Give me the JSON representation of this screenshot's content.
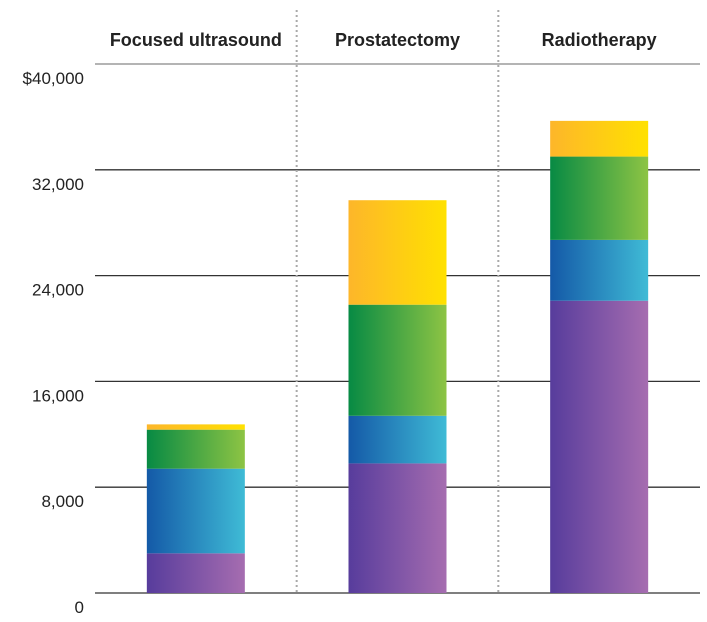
{
  "chart_data": {
    "type": "stacked-bar",
    "categories": [
      "Focused ultrasound",
      "Prostatectomy",
      "Radiotherapy"
    ],
    "series": [
      {
        "colors": [
          "#573c9c",
          "#a66db0"
        ],
        "values": [
          3000,
          9800,
          22100
        ]
      },
      {
        "colors": [
          "#1459a7",
          "#3fbbd6"
        ],
        "values": [
          6400,
          3600,
          4600
        ]
      },
      {
        "colors": [
          "#078a44",
          "#8dc444"
        ],
        "values": [
          2950,
          8400,
          6300
        ]
      },
      {
        "colors": [
          "#fdb62a",
          "#ffe100"
        ],
        "values": [
          400,
          7900,
          2700
        ]
      }
    ],
    "ylim": [
      0,
      40000
    ],
    "yticks": [
      0,
      {
        "value": 8000,
        "label": "8,000"
      },
      {
        "value": 16000,
        "label": "16,000"
      },
      {
        "value": 24000,
        "label": "24,000"
      },
      {
        "value": 32000,
        "label": "32,000"
      },
      {
        "value": 40000,
        "label": "$40,000"
      }
    ],
    "grid": true,
    "category_separators": true
  }
}
